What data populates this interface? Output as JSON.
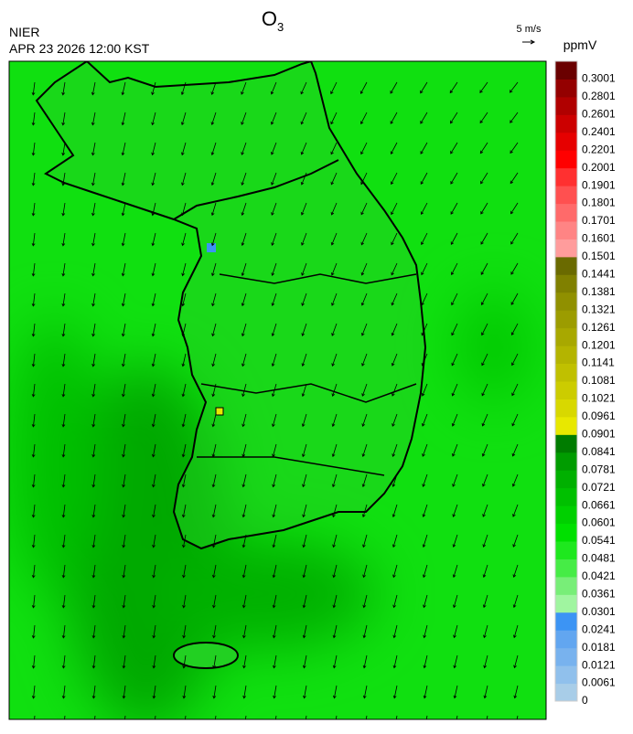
{
  "header": {
    "title": {
      "main": "O",
      "subscript": "3"
    },
    "agency": "NIER",
    "datetime": "APR 23 2026 12:00 KST",
    "wind_scale": "5 m/s"
  },
  "colorbar": {
    "unit": "ppmV",
    "levels": [
      0,
      0.0061,
      0.0121,
      0.0181,
      0.0241,
      0.0301,
      0.0361,
      0.0421,
      0.0481,
      0.0541,
      0.0601,
      0.0661,
      0.0721,
      0.0781,
      0.0841,
      0.0901,
      0.0961,
      0.1021,
      0.1081,
      0.1141,
      0.1201,
      0.1261,
      0.1321,
      0.1381,
      0.1441,
      0.1501,
      0.1601,
      0.1701,
      0.1801,
      0.1901,
      0.2001,
      0.2201,
      0.2401,
      0.2601,
      0.2801,
      0.3001
    ],
    "colors": [
      "#a8cde8",
      "#90c0ec",
      "#78b2ee",
      "#62a6f0",
      "#3c94f4",
      "#a0f5a0",
      "#78ee78",
      "#46ec46",
      "#1ee81e",
      "#00e000",
      "#00d000",
      "#00c000",
      "#00b000",
      "#009c00",
      "#007c00",
      "#e8e800",
      "#d8d800",
      "#cccc00",
      "#c0c000",
      "#b4b400",
      "#a8a800",
      "#9c9c00",
      "#909000",
      "#808000",
      "#6a6a00",
      "#ff9c9c",
      "#ff8484",
      "#ff6a6a",
      "#ff5050",
      "#ff3030",
      "#ff0000",
      "#e60000",
      "#cc0000",
      "#b00000",
      "#940000",
      "#6a0000"
    ]
  }
}
